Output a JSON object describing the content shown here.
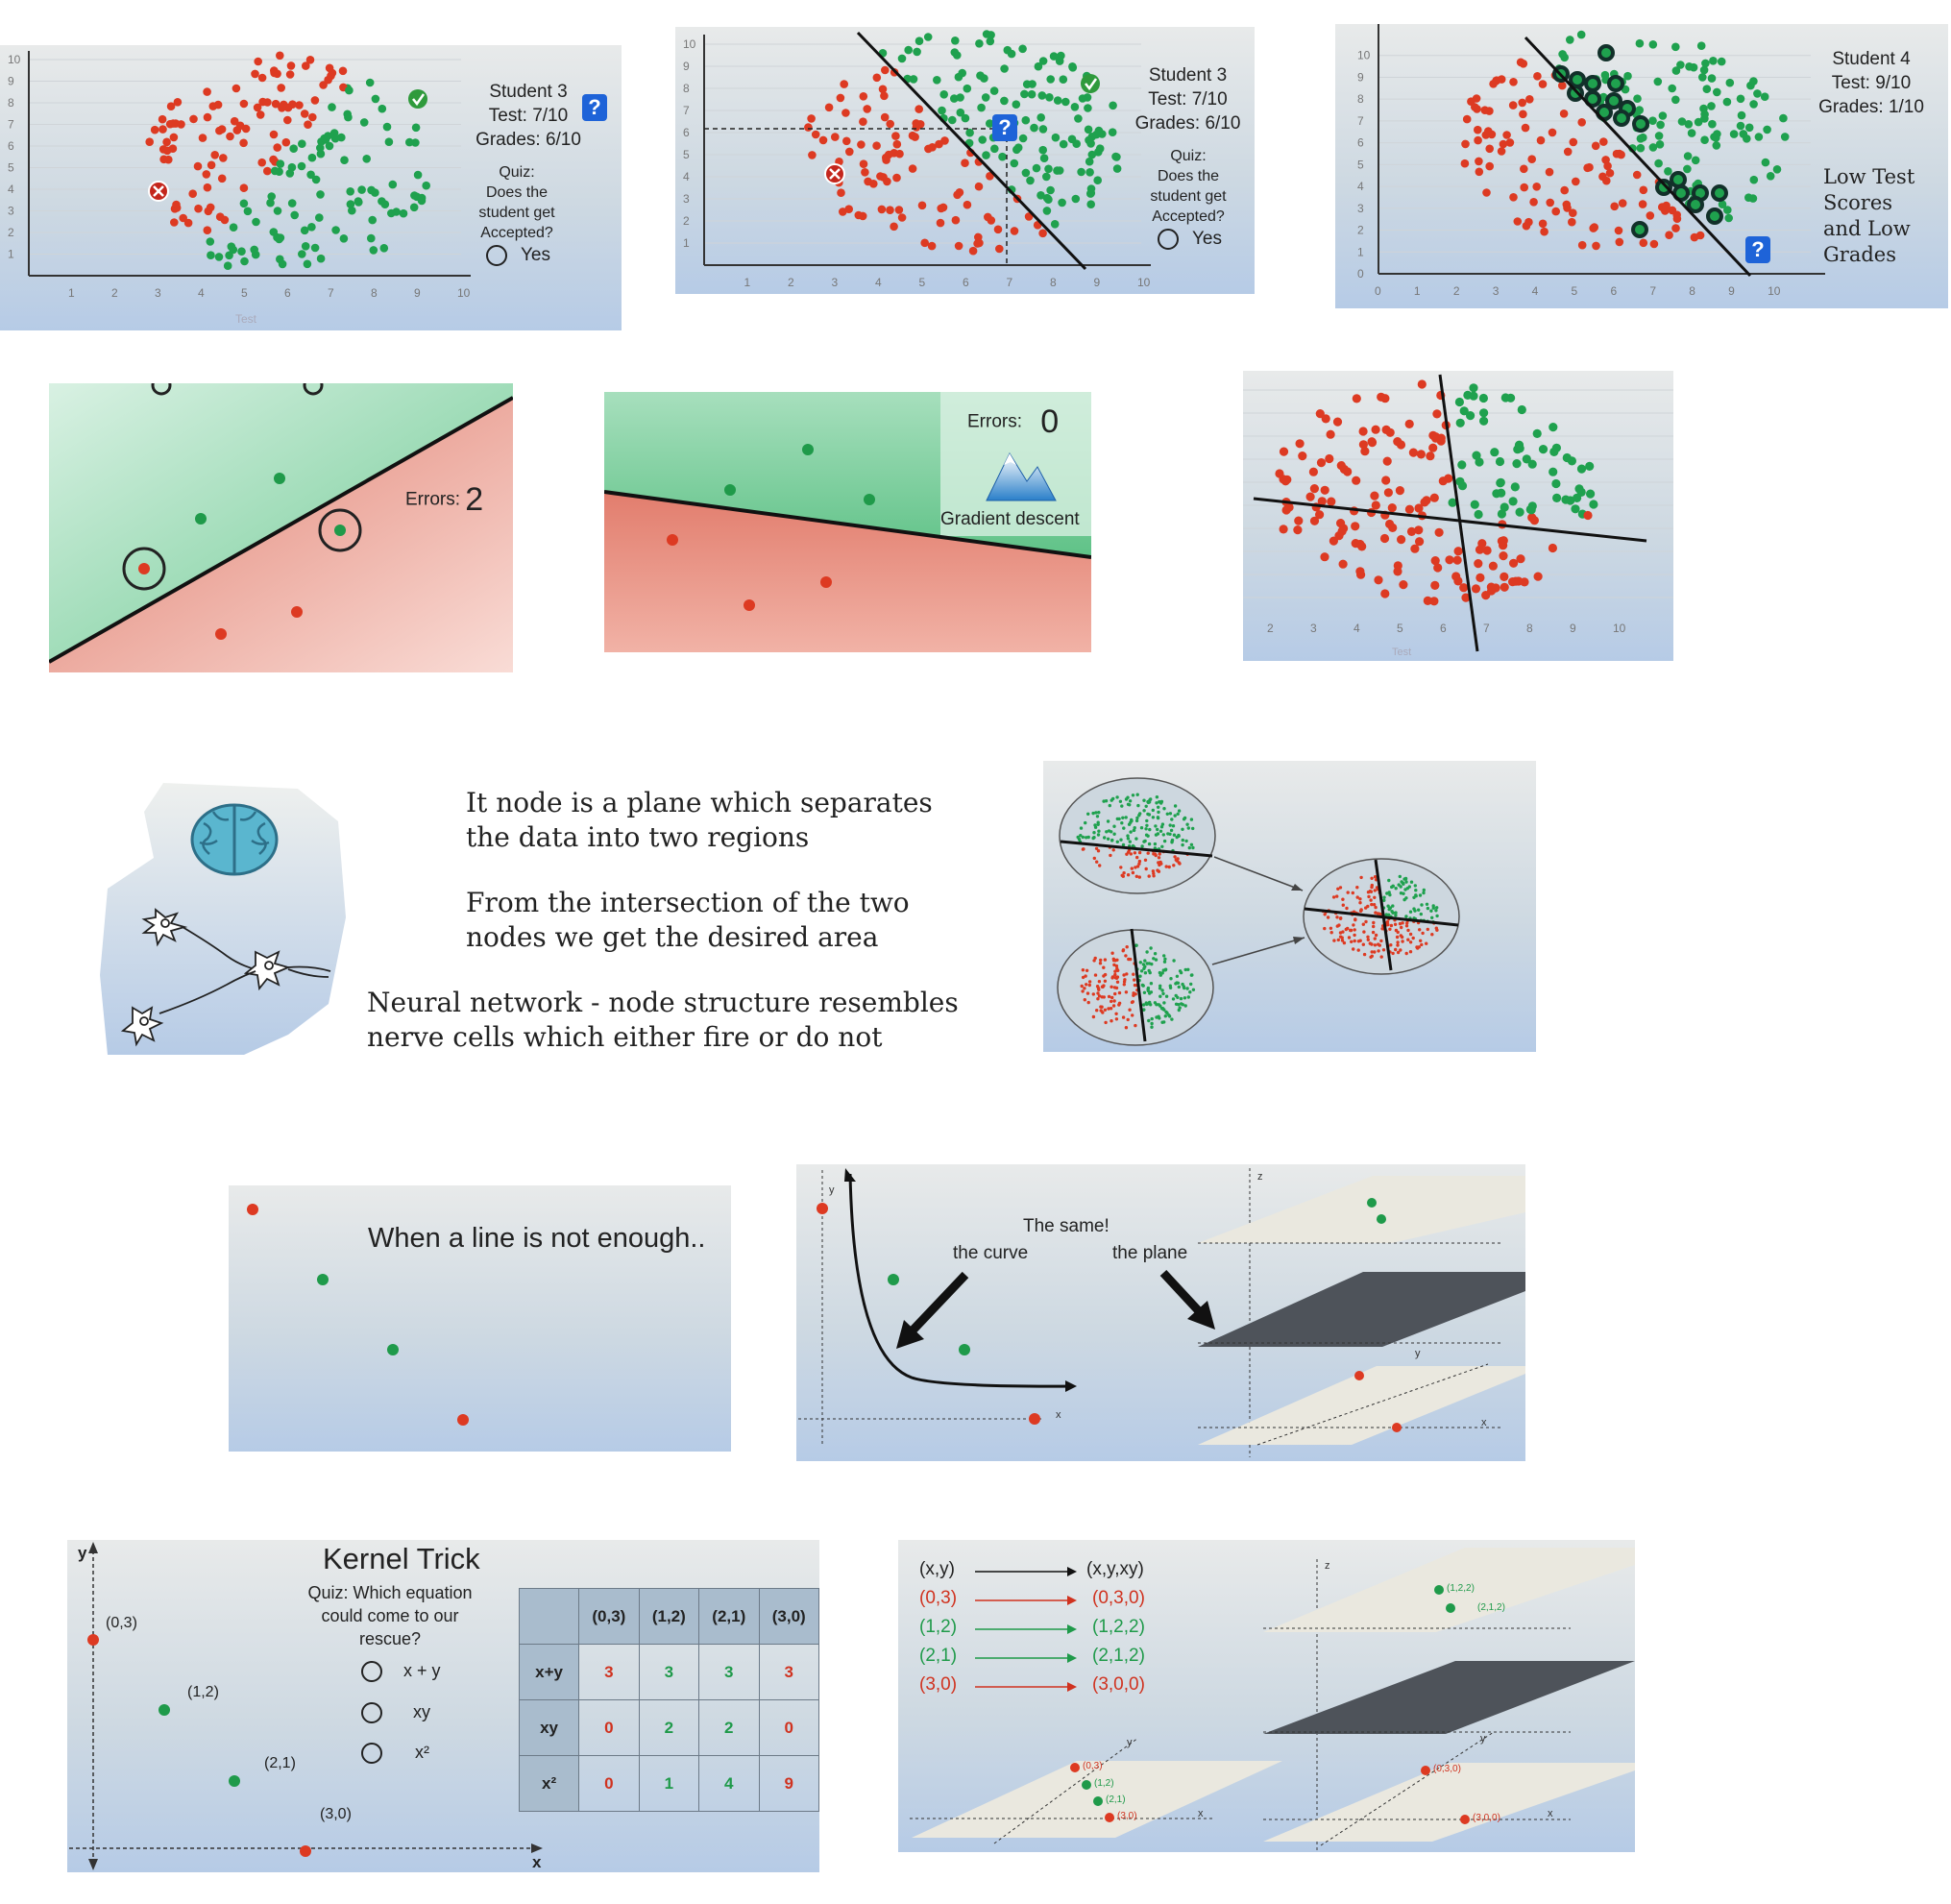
{
  "colors": {
    "red": "#dd3a22",
    "green": "#1fa14e",
    "dark": "#1a1a1a",
    "blue": "#1e63d8"
  },
  "panel1": {
    "title_lines": [
      "Student 3",
      "Test: 7/10",
      "Grades: 6/10"
    ],
    "quiz_lines": [
      "Quiz:",
      "Does the",
      "student get",
      "Accepted?"
    ],
    "answer": "Yes",
    "help_icon": "?",
    "x_ticks": [
      "1",
      "2",
      "3",
      "4",
      "5",
      "6",
      "7",
      "8",
      "9",
      "10"
    ],
    "y_ticks": [
      "1",
      "2",
      "3",
      "4",
      "5",
      "6",
      "7",
      "8",
      "9",
      "10"
    ],
    "x_label": "Test"
  },
  "panel2": {
    "title_lines": [
      "Student 3",
      "Test: 7/10",
      "Grades: 6/10"
    ],
    "quiz_lines": [
      "Quiz:",
      "Does the",
      "student get",
      "Accepted?"
    ],
    "answer": "Yes",
    "help_icon": "?",
    "x_ticks": [
      "1",
      "2",
      "3",
      "4",
      "5",
      "6",
      "7",
      "8",
      "9",
      "10"
    ],
    "y_ticks": [
      "1",
      "2",
      "3",
      "4",
      "5",
      "6",
      "7",
      "8",
      "9",
      "10"
    ]
  },
  "panel3": {
    "title_lines": [
      "Student 4",
      "Test: 9/10",
      "Grades: 1/10"
    ],
    "note_lines": [
      "Low Test",
      "Scores",
      "and Low",
      "Grades"
    ],
    "help_icon": "?",
    "x_ticks": [
      "0",
      "1",
      "2",
      "3",
      "4",
      "5",
      "6",
      "7",
      "8",
      "9",
      "10"
    ],
    "y_ticks": [
      "0",
      "1",
      "2",
      "3",
      "4",
      "5",
      "6",
      "7",
      "8",
      "9",
      "10"
    ]
  },
  "panel4": {
    "errors_label": "Errors:",
    "errors_value": "2"
  },
  "panel5": {
    "errors_label": "Errors:",
    "errors_value": "0",
    "caption": "Gradient descent"
  },
  "panel6": {
    "x_ticks": [
      "2",
      "3",
      "4",
      "5",
      "6",
      "7",
      "8",
      "9",
      "10"
    ],
    "x_label": "Test"
  },
  "text_block": {
    "p1": [
      "It node is a plane which separates",
      "the data into two regions"
    ],
    "p2": [
      "From the intersection of the two",
      "nodes we get the desired area"
    ],
    "p3": [
      "Neural network - node structure resembles",
      "nerve cells which either fire or do not"
    ]
  },
  "panel8": {
    "title": "When a line is not enough.."
  },
  "panel9": {
    "title": "The same!",
    "curve_label": "the curve",
    "plane_label": "the plane",
    "axes": {
      "x": "x",
      "y": "y",
      "z": "z"
    }
  },
  "kernel": {
    "title": "Kernel Trick",
    "quiz_lines": [
      "Quiz: Which equation",
      "could come to our",
      "rescue?"
    ],
    "options": [
      "x + y",
      "xy",
      "x²"
    ],
    "axis_x": "x",
    "axis_y": "y",
    "points": [
      "(0,3)",
      "(1,2)",
      "(2,1)",
      "(3,0)"
    ],
    "table": {
      "columns": [
        "(0,3)",
        "(1,2)",
        "(2,1)",
        "(3,0)"
      ],
      "rows": [
        {
          "label": "x+y",
          "values": [
            "3",
            "3",
            "3",
            "3"
          ]
        },
        {
          "label": "xy",
          "values": [
            "0",
            "2",
            "2",
            "0"
          ]
        },
        {
          "label": "x²",
          "values": [
            "0",
            "1",
            "4",
            "9"
          ]
        }
      ]
    }
  },
  "mapping": {
    "header_from": "(x,y)",
    "header_to": "(x,y,xy)",
    "rows": [
      {
        "from": "(0,3)",
        "to": "(0,3,0)",
        "color": "red"
      },
      {
        "from": "(1,2)",
        "to": "(1,2,2)",
        "color": "green"
      },
      {
        "from": "(2,1)",
        "to": "(2,1,2)",
        "color": "green"
      },
      {
        "from": "(3,0)",
        "to": "(3,0,0)",
        "color": "red"
      }
    ],
    "plane_labels_top": [
      "(1,2,2)",
      "(2,1,2)"
    ],
    "plane_labels_bottom_left": [
      "(0,3)",
      "(1,2)",
      "(2,1)",
      "(3,0)"
    ],
    "plane_labels_bottom_right": [
      "(0,3,0)",
      "(3,0,0)"
    ],
    "axes": {
      "x": "x",
      "y": "y",
      "z": "z"
    }
  }
}
